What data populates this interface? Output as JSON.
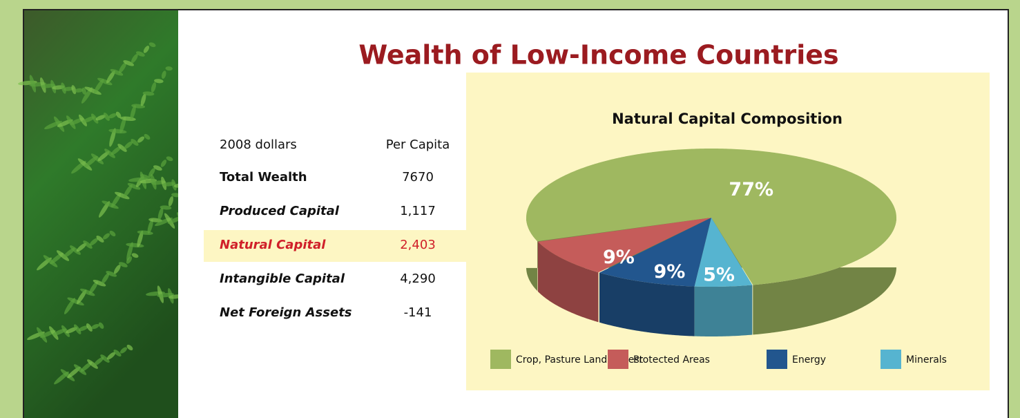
{
  "title": "Wealth of Low-Income Countries",
  "table": {
    "header": [
      "2008 dollars",
      "Per Capita"
    ],
    "rows": [
      [
        "Total Wealth",
        "7670"
      ],
      [
        "Produced Capital",
        "1,117"
      ],
      [
        "Natural Capital",
        "2,403"
      ],
      [
        "Intangible Capital",
        "4,290"
      ],
      [
        "Net Foreign Assets",
        "-141"
      ]
    ]
  },
  "chart_data": {
    "type": "pie",
    "title": "Natural Capital Composition",
    "categories": [
      "Crop, Pasture Land, Forest",
      "Protected Areas",
      "Energy",
      "Minerals"
    ],
    "values": [
      77,
      9,
      9,
      5
    ],
    "value_labels": [
      "77%",
      "9%",
      "9%",
      "5%"
    ],
    "colors": [
      "#9fb860",
      "#c55c5a",
      "#22568e",
      "#56b4d0"
    ],
    "legend": "bottom"
  }
}
